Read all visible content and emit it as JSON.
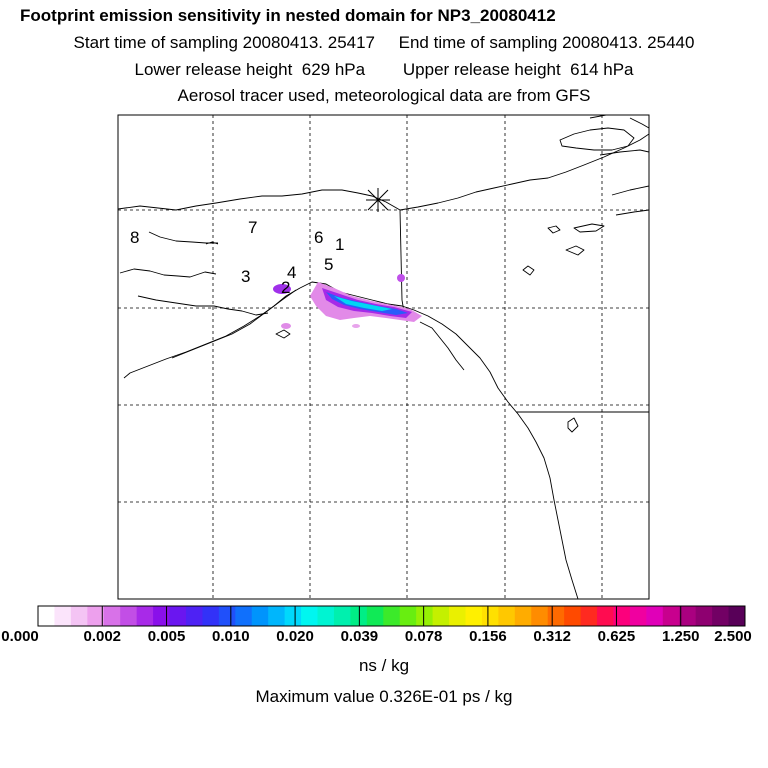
{
  "header": {
    "title": "Footprint emission sensitivity in nested domain for NP3_20080412",
    "line1": "Start time of sampling 20080413. 25417     End time of sampling 20080413. 25440",
    "line2": "Lower release height  629 hPa        Upper release height  614 hPa",
    "line3": "Aerosol tracer used, meteorological data are from GFS"
  },
  "markers": [
    "8",
    "7",
    "6",
    "1",
    "5",
    "4",
    "3",
    "2"
  ],
  "legend": {
    "colors": [
      "#ffffff",
      "#fbe4fb",
      "#f4c4f4",
      "#eda0ed",
      "#d872e8",
      "#c24ee6",
      "#a82ae8",
      "#8a10ea",
      "#6a16f0",
      "#4e22f4",
      "#3232f8",
      "#2050fa",
      "#1070fc",
      "#0094fc",
      "#00b6fc",
      "#00d8fc",
      "#00f6f0",
      "#00f4d2",
      "#00f0ae",
      "#00ee86",
      "#10ea56",
      "#3cea2a",
      "#68ee10",
      "#96f004",
      "#c4f000",
      "#eaf000",
      "#fff000",
      "#ffe000",
      "#ffc800",
      "#ffac00",
      "#ff8c00",
      "#ff6a00",
      "#ff4a00",
      "#ff2a20",
      "#ff0c50",
      "#fc007c",
      "#f000a0",
      "#e000b8",
      "#c8008e",
      "#aa0080",
      "#8e0070",
      "#720064",
      "#580058"
    ],
    "ticks": [
      "0.000",
      "0.002",
      "0.005",
      "0.010",
      "0.020",
      "0.039",
      "0.078",
      "0.156",
      "0.312",
      "0.625",
      "1.250",
      "2.500"
    ],
    "unit": "ns / kg"
  },
  "max_value": "Maximum value  0.326E-01 ps / kg"
}
